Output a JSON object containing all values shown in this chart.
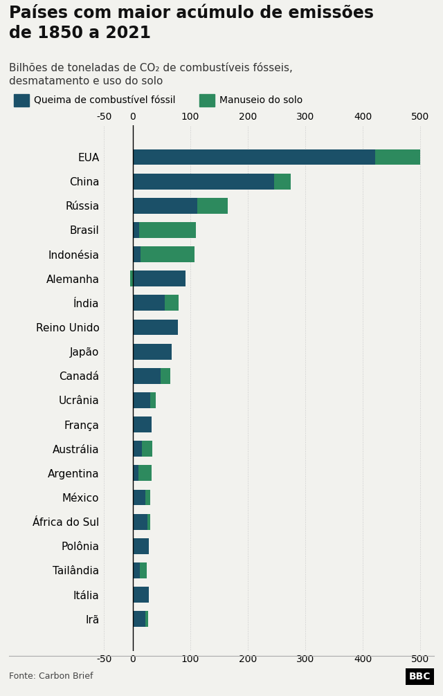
{
  "title": "Países com maior acúmulo de emissões\nde 1850 a 2021",
  "subtitle": "Bilhões de toneladas de CO₂ de combustíveis fósseis,\ndesmatamento e uso do solo",
  "source": "Fonte: Carbon Brief",
  "legend_fossil": "Queima de combustível fóssil",
  "legend_land": "Manuseio do solo",
  "color_fossil": "#1b5068",
  "color_land": "#2d8a5e",
  "bg_color": "#f2f2ee",
  "grid_color": "#c8c8c8",
  "countries": [
    "EUA",
    "China",
    "Rússia",
    "Brasil",
    "Indonésia",
    "Alemanha",
    "Índia",
    "Reino Unido",
    "Japão",
    "Canadá",
    "Ucrânia",
    "França",
    "Austrália",
    "Argentina",
    "México",
    "África do Sul",
    "Polônia",
    "Tailândia",
    "Itália",
    "Irã"
  ],
  "fossil_values": [
    421,
    245,
    112,
    11,
    13,
    92,
    55,
    78,
    68,
    48,
    30,
    33,
    16,
    10,
    22,
    25,
    28,
    12,
    28,
    22
  ],
  "land_values": [
    79,
    30,
    53,
    99,
    94,
    -5,
    25,
    0,
    0,
    17,
    10,
    0,
    18,
    22,
    8,
    5,
    0,
    12,
    0,
    5
  ],
  "xlim_min": -50,
  "xlim_max": 520,
  "xticks": [
    -50,
    0,
    100,
    200,
    300,
    400,
    500
  ],
  "bar_height": 0.65,
  "title_fontsize": 17,
  "subtitle_fontsize": 11,
  "tick_fontsize": 10,
  "country_fontsize": 11,
  "legend_fontsize": 10,
  "source_fontsize": 9
}
